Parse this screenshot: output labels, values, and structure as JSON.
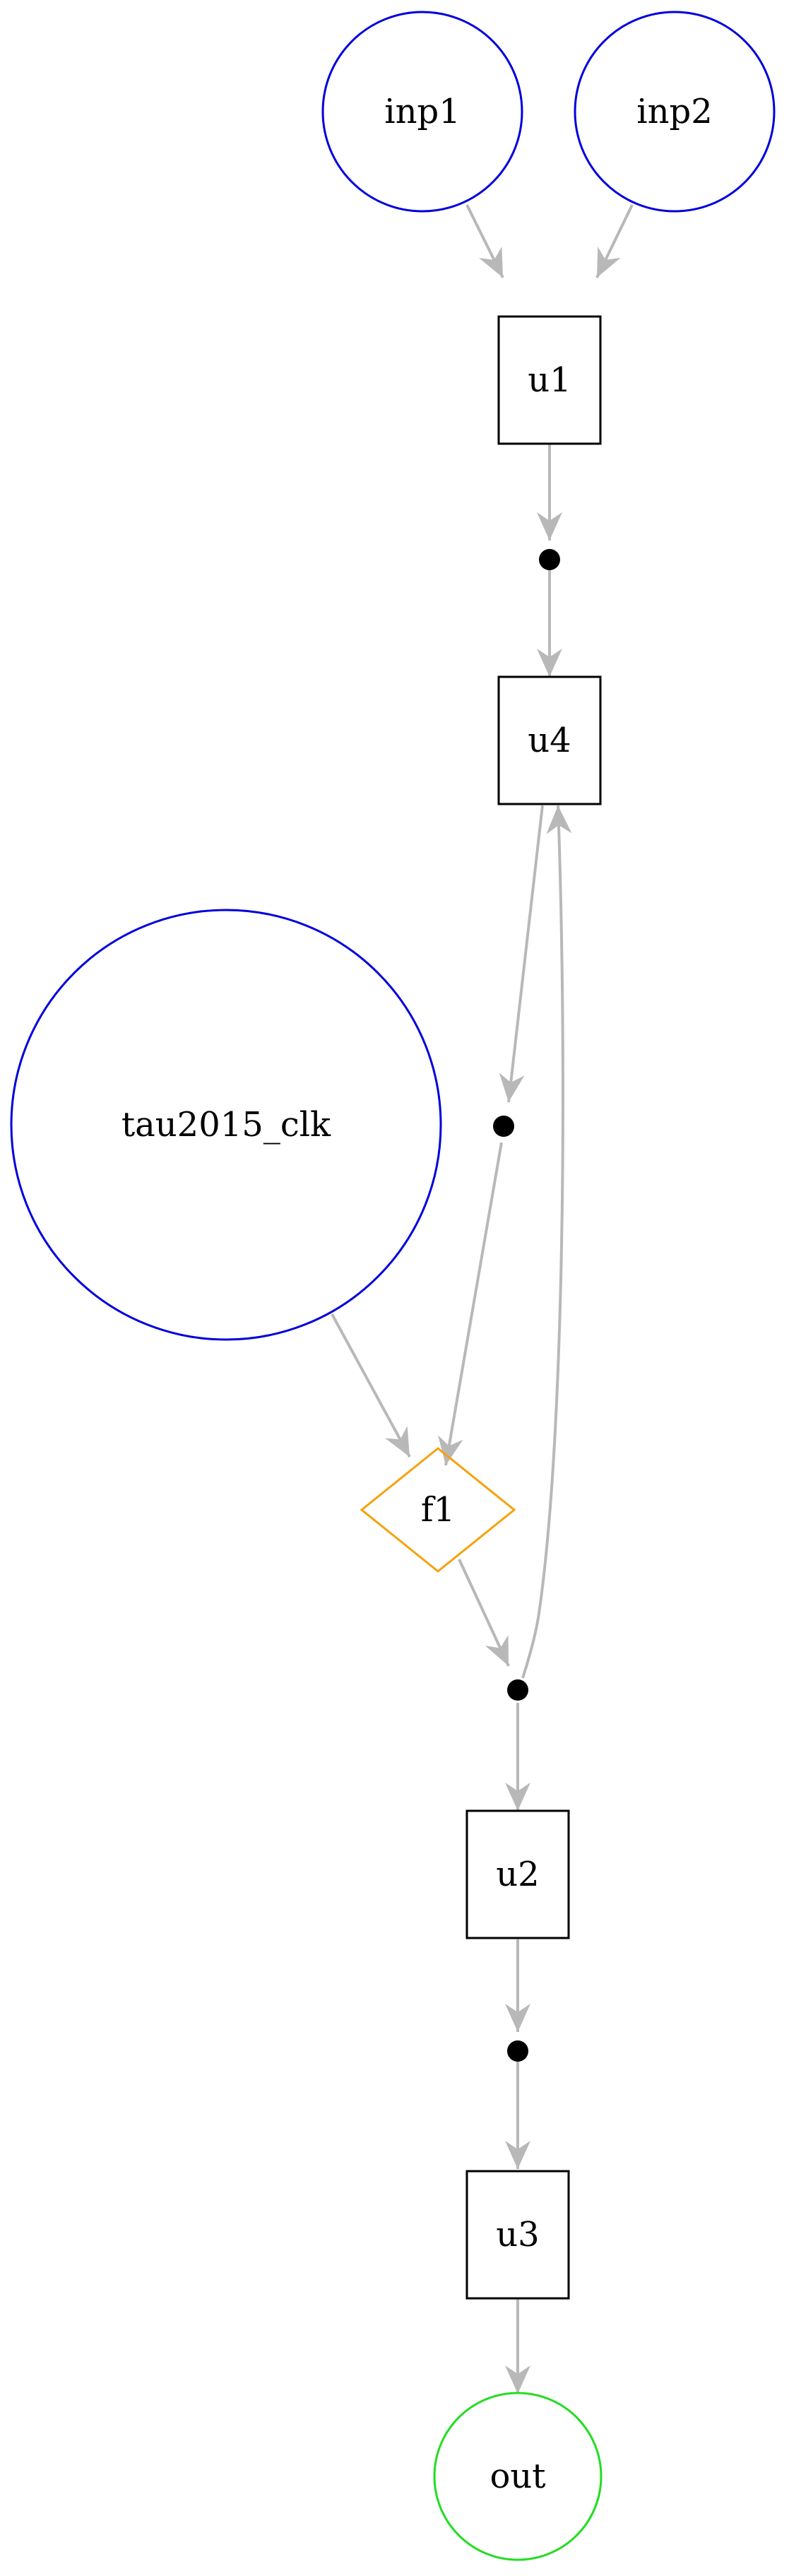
{
  "colors": {
    "edge": "#b8b8b8",
    "input_node": "#0000dd",
    "output_node": "#22dd22",
    "logic_node": "#f5a20e",
    "box_node": "#000000",
    "junction": "#000000"
  },
  "nodes": {
    "inp1": {
      "label": "inp1",
      "kind": "input"
    },
    "inp2": {
      "label": "inp2",
      "kind": "input"
    },
    "u1": {
      "label": "u1",
      "kind": "box"
    },
    "u4": {
      "label": "u4",
      "kind": "box"
    },
    "tau2015_clk": {
      "label": "tau2015_clk",
      "kind": "input"
    },
    "f1": {
      "label": "f1",
      "kind": "logic"
    },
    "u2": {
      "label": "u2",
      "kind": "box"
    },
    "u3": {
      "label": "u3",
      "kind": "box"
    },
    "out": {
      "label": "out",
      "kind": "output"
    }
  },
  "edges": [
    {
      "from": "inp1",
      "to": "u1"
    },
    {
      "from": "inp2",
      "to": "u1"
    },
    {
      "from": "u1",
      "to": "junction-1"
    },
    {
      "from": "junction-1",
      "to": "u4"
    },
    {
      "from": "u4",
      "to": "junction-2"
    },
    {
      "from": "junction-2",
      "to": "f1"
    },
    {
      "from": "tau2015_clk",
      "to": "f1"
    },
    {
      "from": "f1",
      "to": "junction-3"
    },
    {
      "from": "junction-3",
      "to": "u4"
    },
    {
      "from": "junction-3",
      "to": "u2"
    },
    {
      "from": "u2",
      "to": "junction-4"
    },
    {
      "from": "junction-4",
      "to": "u3"
    },
    {
      "from": "u3",
      "to": "out"
    }
  ]
}
